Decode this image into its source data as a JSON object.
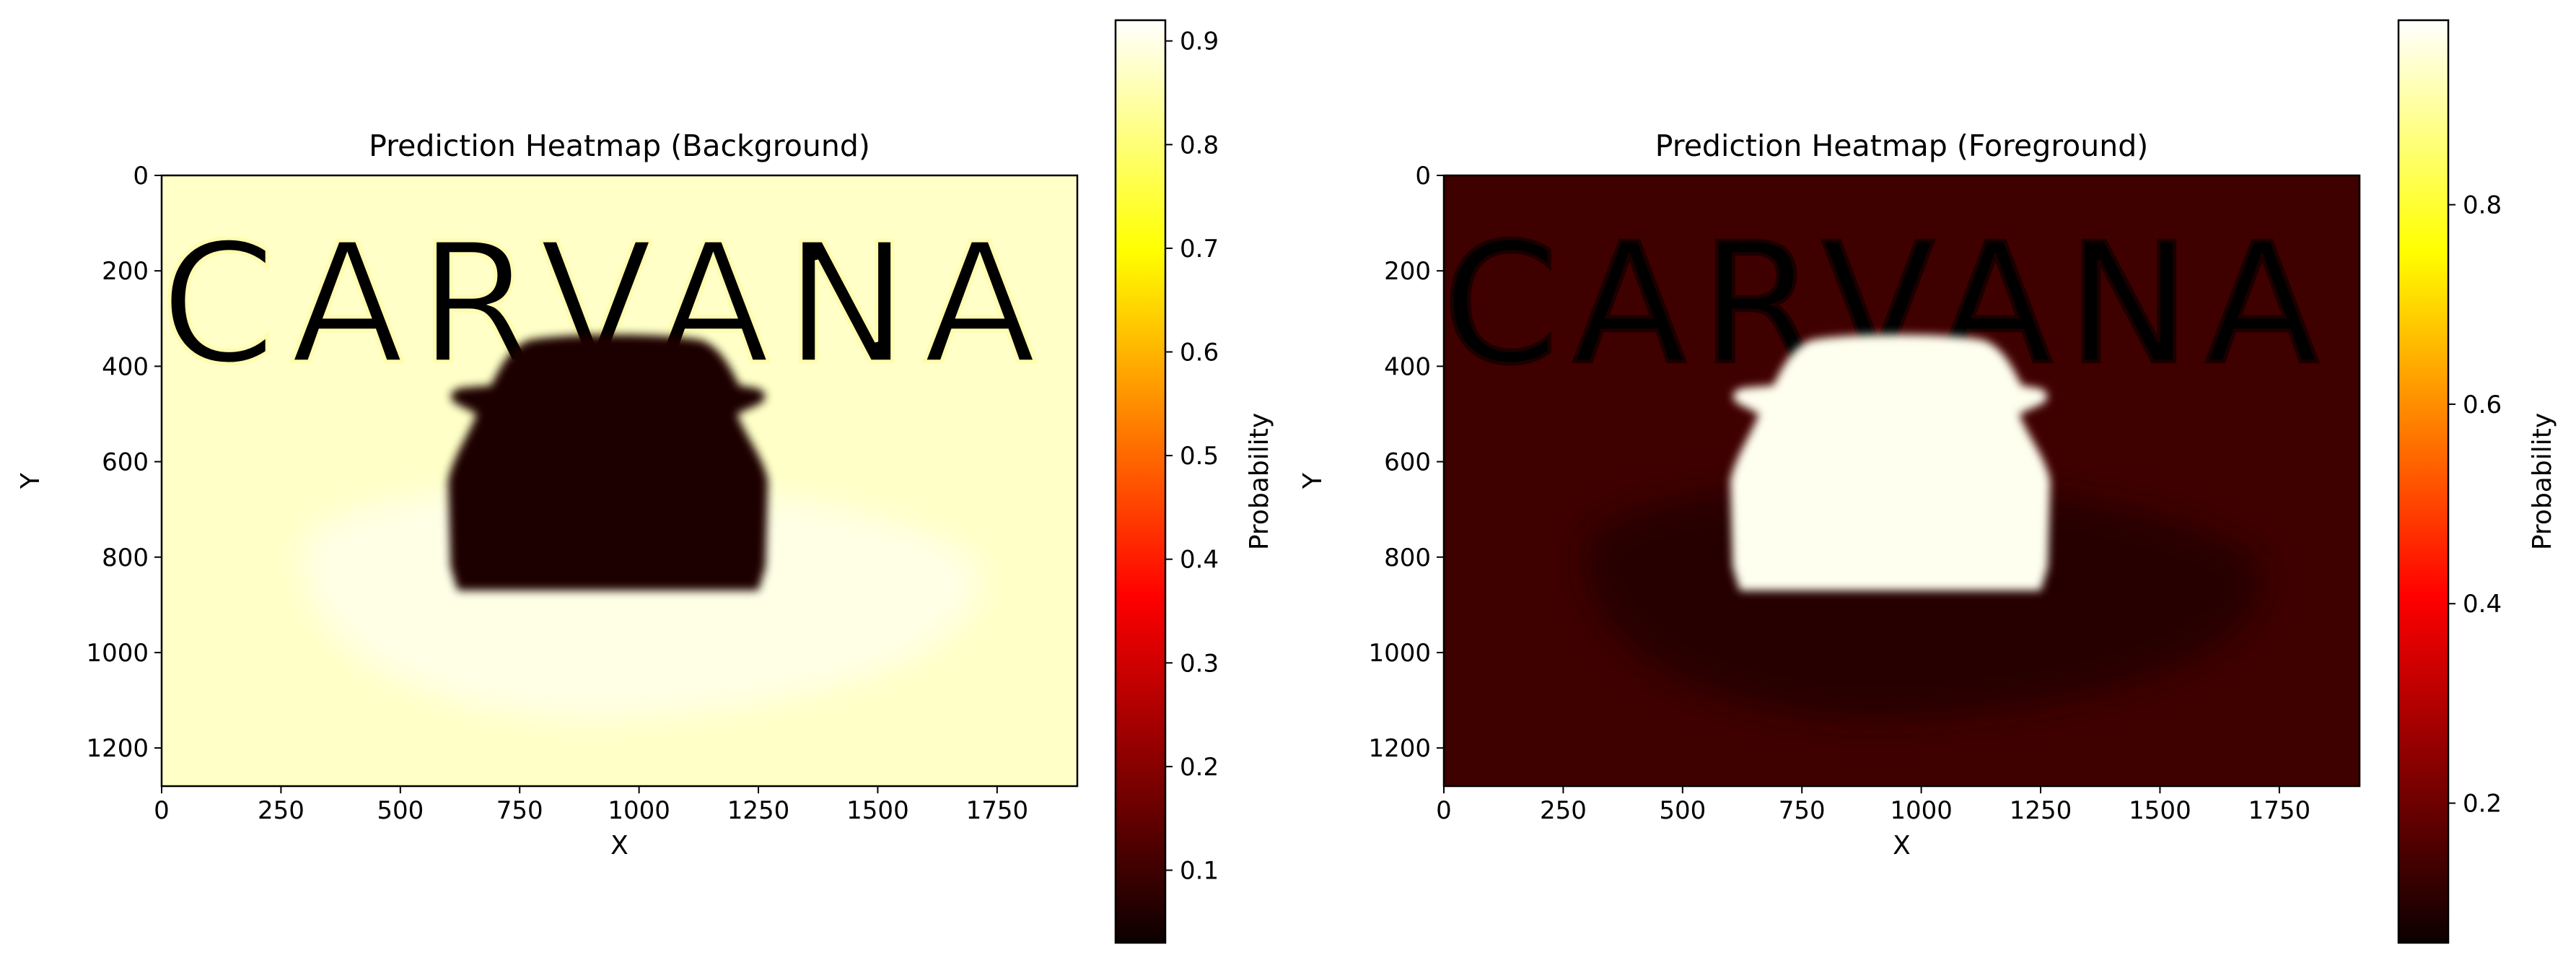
{
  "chart_data": [
    {
      "type": "heatmap",
      "title": "Prediction Heatmap (Background)",
      "xlabel": "X",
      "ylabel": "Y",
      "xlim": [
        0,
        1918
      ],
      "ylim": [
        1280,
        0
      ],
      "xticks": [
        0,
        250,
        500,
        750,
        1000,
        1250,
        1500,
        1750
      ],
      "yticks": [
        0,
        200,
        400,
        600,
        800,
        1000,
        1200
      ],
      "colormap": "hot",
      "colorbar": {
        "label": "Probability",
        "range": [
          0.03,
          0.92
        ],
        "ticks": [
          0.1,
          0.2,
          0.3,
          0.4,
          0.5,
          0.6,
          0.7,
          0.8,
          0.9
        ]
      },
      "background_value": 0.87,
      "car_value": 0.05,
      "watermark_text": "CARVANA",
      "car_extent": {
        "x": [
          600,
          1270
        ],
        "y": [
          330,
          870
        ]
      }
    },
    {
      "type": "heatmap",
      "title": "Prediction Heatmap (Foreground)",
      "xlabel": "X",
      "ylabel": "Y",
      "xlim": [
        0,
        1918
      ],
      "ylim": [
        1280,
        0
      ],
      "xticks": [
        0,
        250,
        500,
        750,
        1000,
        1250,
        1500,
        1750
      ],
      "yticks": [
        0,
        200,
        400,
        600,
        800,
        1000,
        1200
      ],
      "colormap": "hot",
      "colorbar": {
        "label": "Probability",
        "range": [
          0.06,
          0.985
        ],
        "ticks": [
          0.2,
          0.4,
          0.6,
          0.8
        ]
      },
      "background_value": 0.13,
      "car_value": 0.97,
      "watermark_text": "CARVANA",
      "car_extent": {
        "x": [
          600,
          1270
        ],
        "y": [
          330,
          870
        ]
      }
    }
  ]
}
